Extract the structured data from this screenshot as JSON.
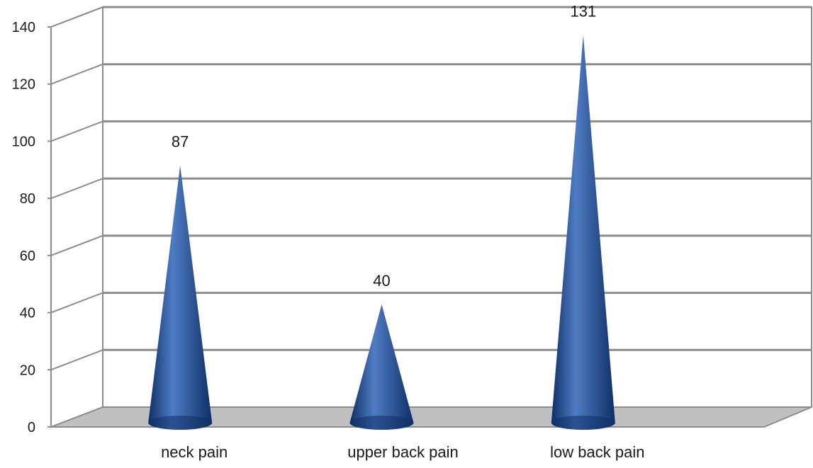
{
  "chart_data": {
    "type": "bar",
    "style": "3d-cone",
    "categories": [
      "neck pain",
      "upper back pain",
      "low back pain"
    ],
    "values": [
      87,
      40,
      131
    ],
    "data_labels": [
      "87",
      "40",
      "131"
    ],
    "ylim": [
      0,
      140
    ],
    "yticks": [
      "0",
      "20",
      "40",
      "60",
      "80",
      "100",
      "120",
      "140"
    ],
    "title": "",
    "xlabel": "",
    "ylabel": "",
    "grid": true,
    "legend": "none",
    "colors": {
      "cone": "#1f4e97",
      "cone_dark": "#0e2f66",
      "cone_light": "#4f7cc4",
      "floor": "#c0c0c0",
      "grid": "#8c8c8c"
    }
  }
}
